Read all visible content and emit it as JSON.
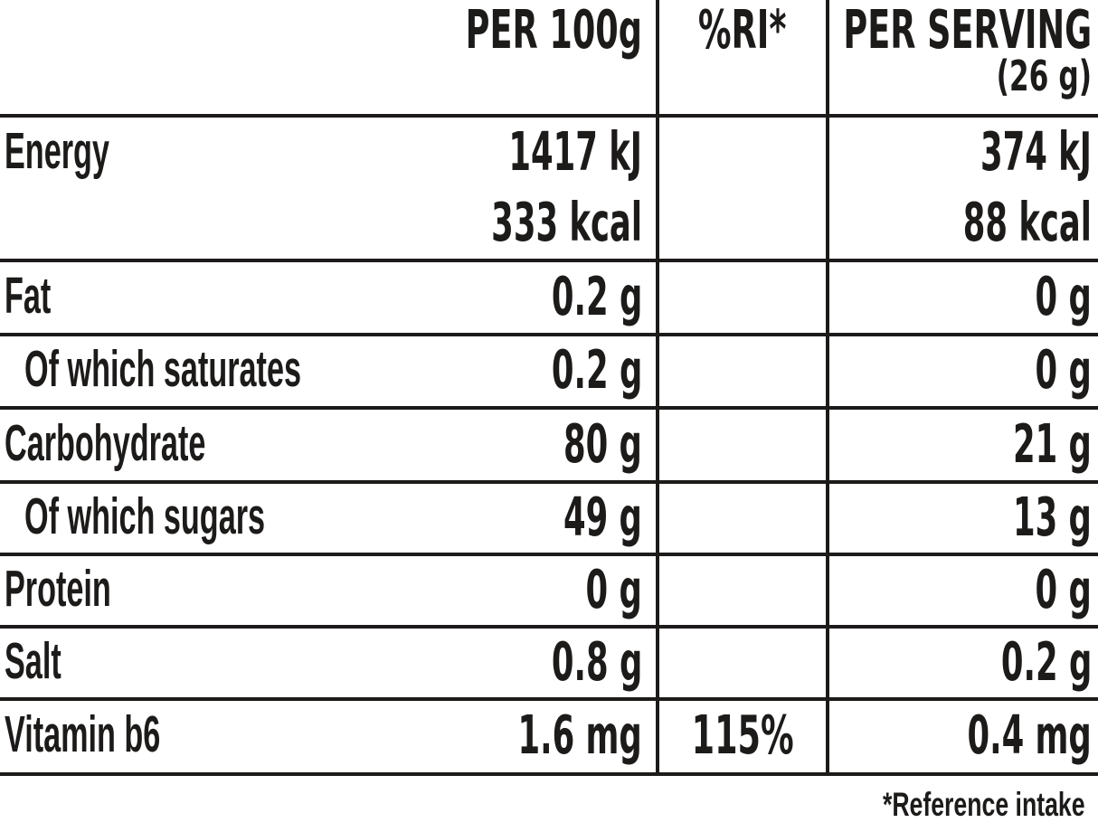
{
  "table": {
    "header": {
      "per_100g": "PER 100g",
      "ri": "%RI*",
      "per_serving": "PER SERVING",
      "serving_size": "(26 g)"
    },
    "rows": [
      {
        "label": "Energy",
        "per_100g": "1417 kJ",
        "per_100g_2": "333 kcal",
        "ri": "",
        "per_serving": "374 kJ",
        "per_serving_2": "88 kcal"
      },
      {
        "label": "Fat",
        "per_100g": "0.2 g",
        "ri": "",
        "per_serving": "0 g"
      },
      {
        "label": "Of which saturates",
        "per_100g": "0.2 g",
        "ri": "",
        "per_serving": "0 g"
      },
      {
        "label": "Carbohydrate",
        "per_100g": "80 g",
        "ri": "",
        "per_serving": "21 g"
      },
      {
        "label": "Of which sugars",
        "per_100g": "49 g",
        "ri": "",
        "per_serving": "13 g"
      },
      {
        "label": "Protein",
        "per_100g": "0 g",
        "ri": "",
        "per_serving": "0 g"
      },
      {
        "label": "Salt",
        "per_100g": "0.8 g",
        "ri": "",
        "per_serving": "0.2 g"
      },
      {
        "label": "Vitamin b6",
        "per_100g": "1.6 mg",
        "ri": "115%",
        "per_serving": "0.4 mg"
      }
    ],
    "footnote": "*Reference intake"
  },
  "colors": {
    "text": "#1d1b1a",
    "line": "#1d1b1a",
    "background": "#ffffff"
  }
}
